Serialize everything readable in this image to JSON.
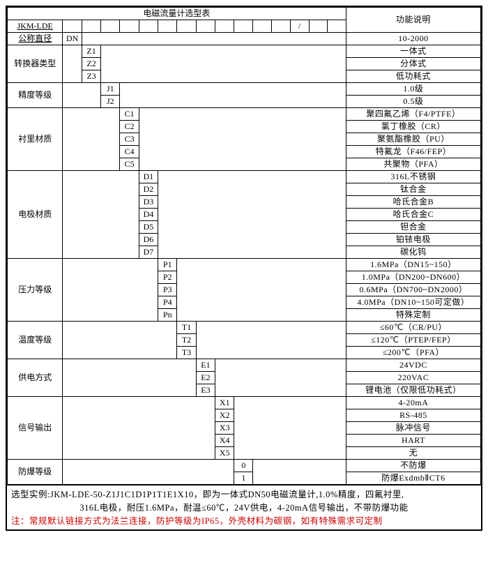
{
  "header": {
    "title": "电磁流量计选型表",
    "right": "功能说明"
  },
  "row1": {
    "label": "JKM-LDE",
    "slash": "/"
  },
  "tree": [
    {
      "label": "公称直径",
      "labelUnderline": true,
      "codeCol": 0,
      "items": [
        {
          "code": "DN",
          "desc": "10-2000"
        }
      ]
    },
    {
      "label": "转换器类型",
      "codeCol": 1,
      "items": [
        {
          "code": "Z1",
          "desc": "一体式"
        },
        {
          "code": "Z2",
          "desc": "分体式"
        },
        {
          "code": "Z3",
          "desc": "低功耗式"
        }
      ]
    },
    {
      "label": "精度等级",
      "codeCol": 2,
      "items": [
        {
          "code": "J1",
          "desc": "1.0级"
        },
        {
          "code": "J2",
          "desc": "0.5级"
        }
      ]
    },
    {
      "label": "衬里材质",
      "codeCol": 3,
      "items": [
        {
          "code": "C1",
          "desc": "聚四氟乙烯（F4/PTFE）"
        },
        {
          "code": "C2",
          "desc": "氯丁橡胶（CR）"
        },
        {
          "code": "C3",
          "desc": "聚氨酯橡胶（PU）"
        },
        {
          "code": "C4",
          "desc": "特氟龙（F46/FEP）"
        },
        {
          "code": "C5",
          "desc": "共聚物（PFA）"
        }
      ]
    },
    {
      "label": "电极材质",
      "codeCol": 4,
      "items": [
        {
          "code": "D1",
          "desc": "316L不锈钢"
        },
        {
          "code": "D2",
          "desc": "钛合金"
        },
        {
          "code": "D3",
          "desc": "哈氏合金B"
        },
        {
          "code": "D4",
          "desc": "哈氏合金C"
        },
        {
          "code": "D5",
          "desc": "钽合金"
        },
        {
          "code": "D6",
          "desc": "铂铱电极"
        },
        {
          "code": "D7",
          "desc": "碳化钨"
        }
      ]
    },
    {
      "label": "压力等级",
      "codeCol": 5,
      "items": [
        {
          "code": "P1",
          "desc": "1.6MPa（DN15~150）"
        },
        {
          "code": "P2",
          "desc": "1.0MPa（DN200~DN600）"
        },
        {
          "code": "P3",
          "desc": "0.6MPa（DN700~DN2000）"
        },
        {
          "code": "P4",
          "desc": "4.0MPa（DN10~150可定做）"
        },
        {
          "code": "Pn",
          "desc": "特殊定制"
        }
      ]
    },
    {
      "label": "温度等级",
      "codeCol": 6,
      "items": [
        {
          "code": "T1",
          "desc": "≤60℃（CR/PU）"
        },
        {
          "code": "T2",
          "desc": "≤120℃（PTEP/FEP）"
        },
        {
          "code": "T3",
          "desc": "≤200℃（PFA）"
        }
      ]
    },
    {
      "label": "供电方式",
      "codeCol": 7,
      "items": [
        {
          "code": "E1",
          "desc": "24VDC"
        },
        {
          "code": "E2",
          "desc": "220VAC"
        },
        {
          "code": "E3",
          "desc": "锂电池（仅限低功耗式）"
        }
      ]
    },
    {
      "label": "信号输出",
      "codeCol": 8,
      "items": [
        {
          "code": "X1",
          "desc": "4-20mA"
        },
        {
          "code": "X2",
          "desc": "RS-485"
        },
        {
          "code": "X3",
          "desc": "脉冲信号"
        },
        {
          "code": "X4",
          "desc": "HART"
        },
        {
          "code": "X5",
          "desc": "无"
        }
      ]
    },
    {
      "label": "防爆等级",
      "codeCol": 9,
      "items": [
        {
          "code": "0",
          "desc": "不防爆"
        },
        {
          "code": "1",
          "desc": "防爆ExdmbⅡCT6"
        }
      ]
    }
  ],
  "notes": {
    "l1": "选型实例:JKM-LDE-50-Z1J1C1D1P1T1E1X10，即为一体式DN50电磁流量计,1.0%精度，四氟衬里,",
    "l2": "316L电极，耐压1.6MPa，耐温≤60℃，24V供电，4-20mA信号输出，不带防爆功能",
    "l3": "注：常规默认链接方式为法兰连接，防护等级为IP65，外壳材料为碳钢，如有特殊需求可定制"
  },
  "style": {
    "codeColWidth": 27,
    "labelColWidth": 81,
    "descColWidth": 196
  }
}
